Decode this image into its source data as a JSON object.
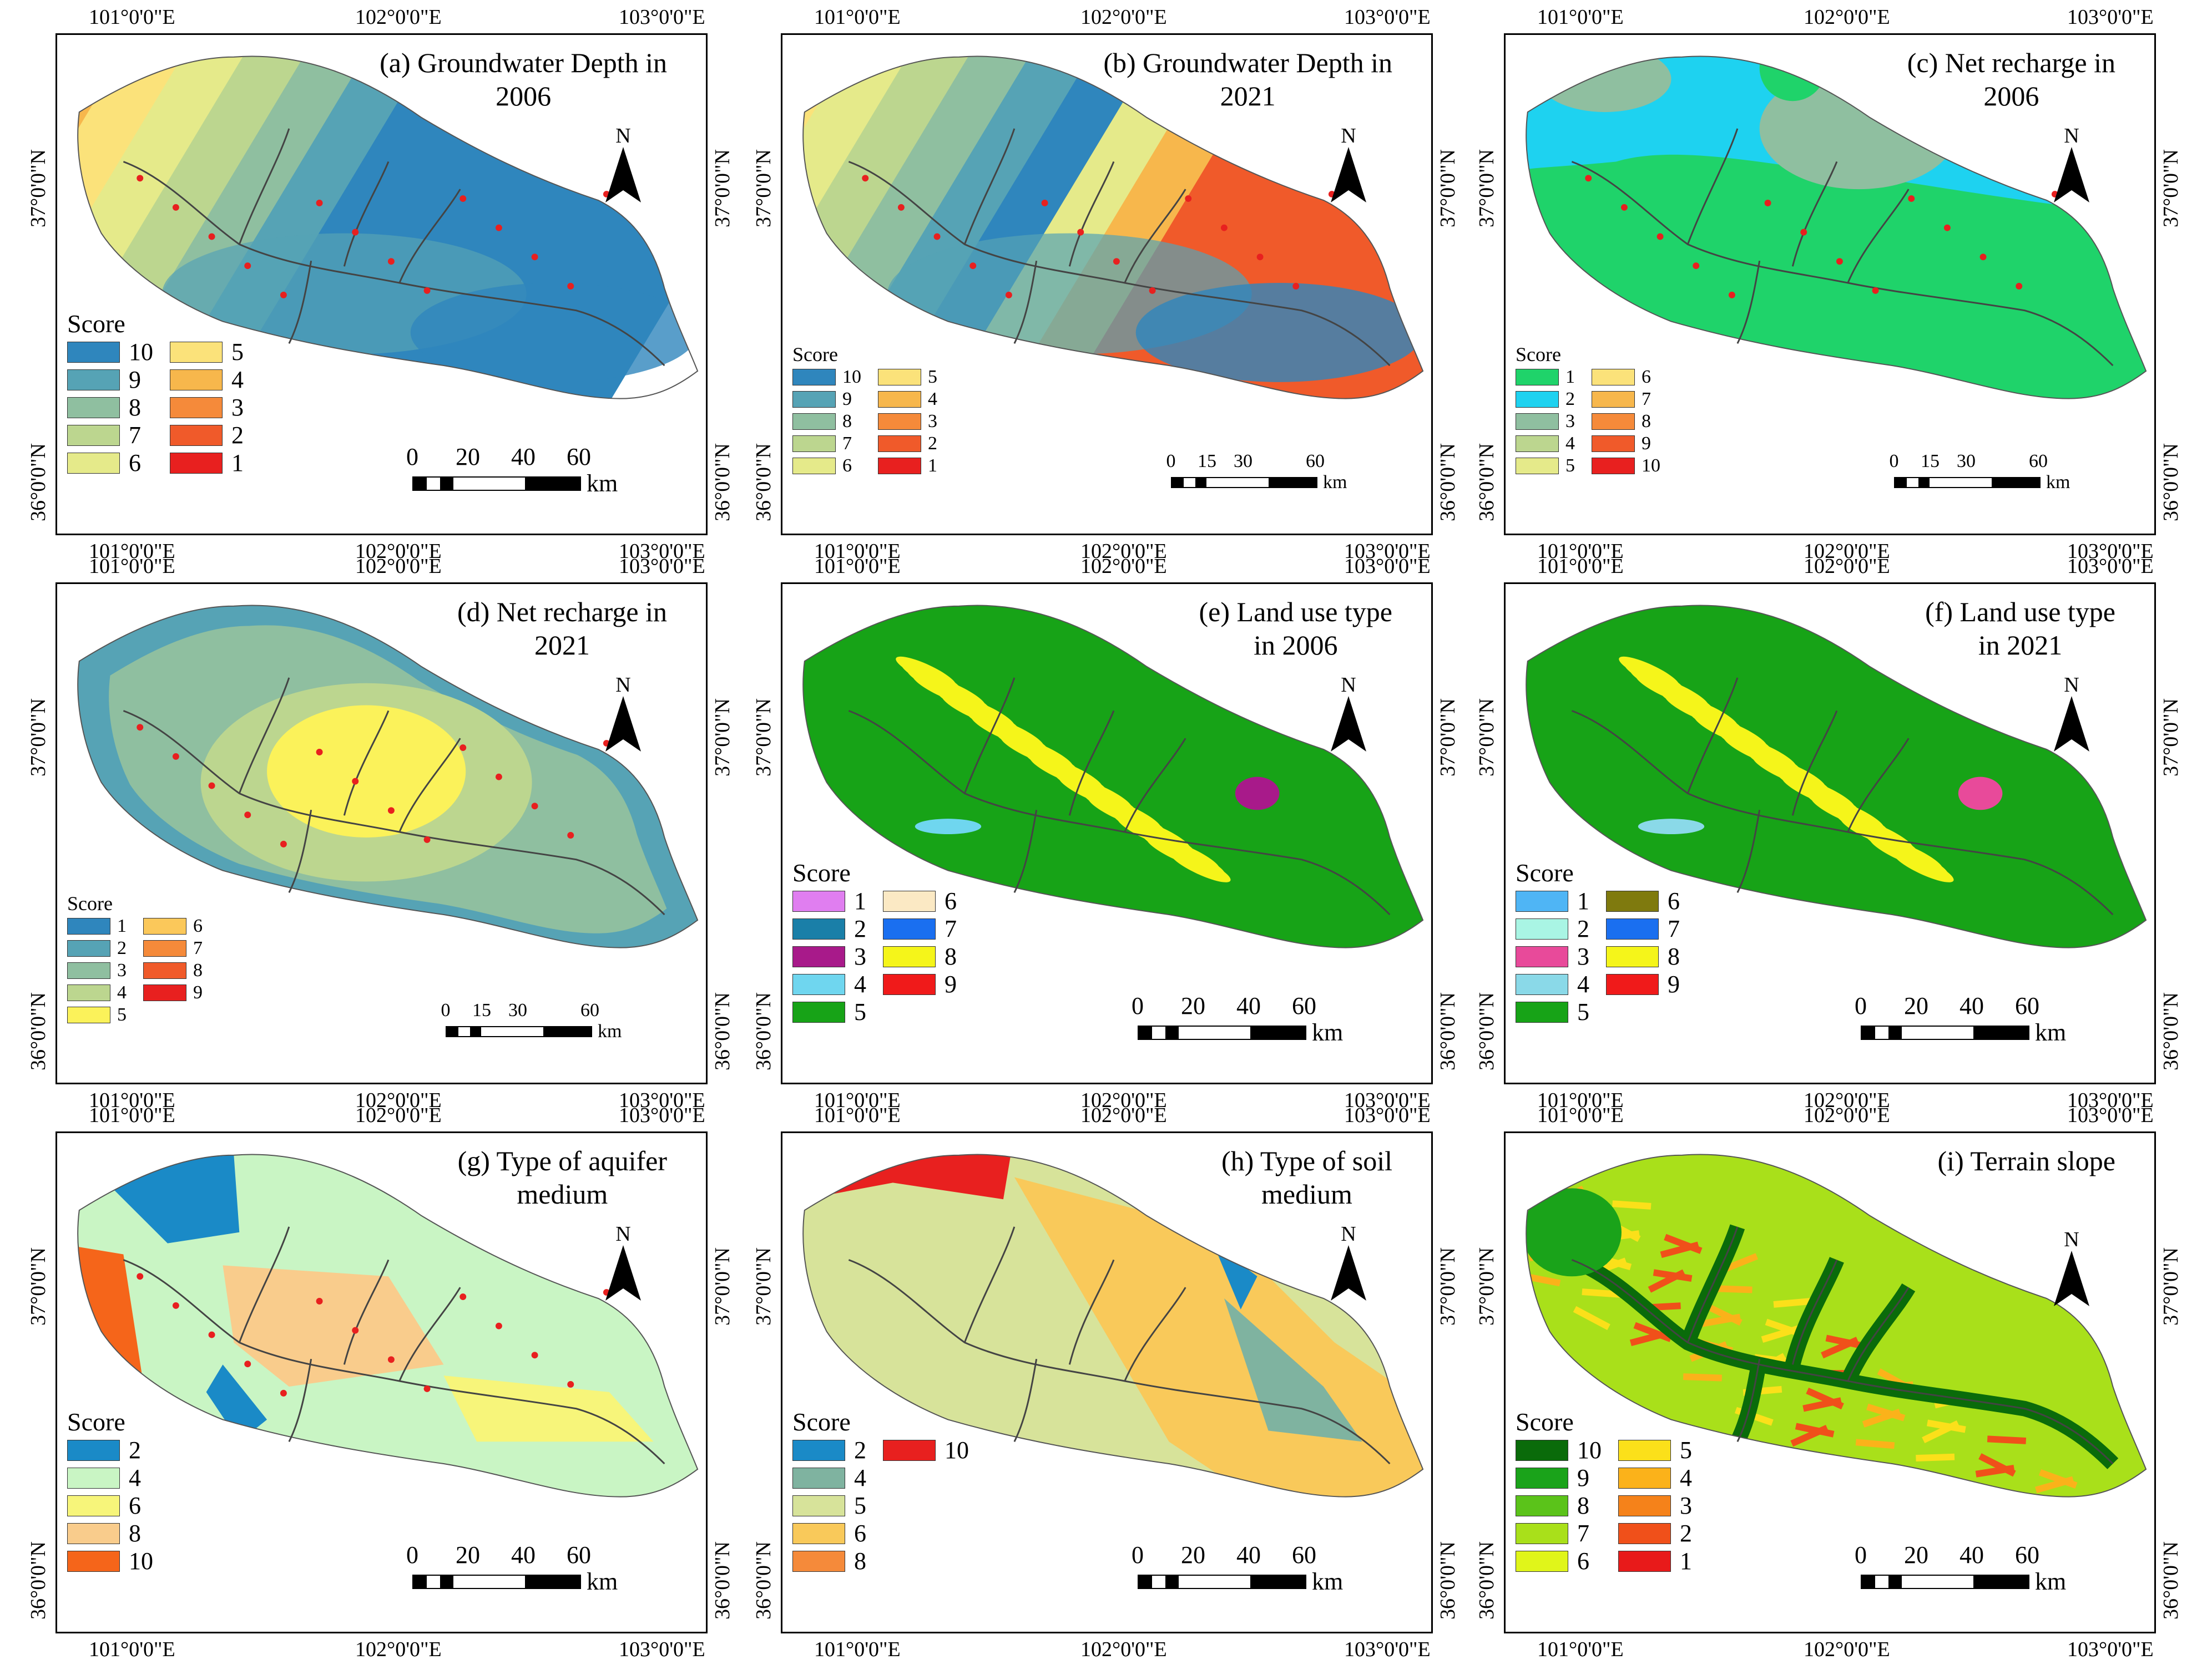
{
  "axis_labels": {
    "lon": [
      "101°0'0\"E",
      "102°0'0\"E",
      "103°0'0\"E"
    ],
    "lat": [
      "37°0'0\"N",
      "36°0'0\"N"
    ]
  },
  "north_label": "N",
  "panels": [
    {
      "title_line1": "(a) Groundwater Depth in",
      "title_line2": "2006",
      "legend_title": "Score",
      "legend_col1": [
        {
          "label": "10",
          "color": "#2f86bd"
        },
        {
          "label": "9",
          "color": "#56a3b5"
        },
        {
          "label": "8",
          "color": "#8fbfa0"
        },
        {
          "label": "7",
          "color": "#bcd68f"
        },
        {
          "label": "6",
          "color": "#e5ea8a"
        }
      ],
      "legend_col2": [
        {
          "label": "5",
          "color": "#fbe27a"
        },
        {
          "label": "4",
          "color": "#f7b74c"
        },
        {
          "label": "3",
          "color": "#f58a3a"
        },
        {
          "label": "2",
          "color": "#f05a2a"
        },
        {
          "label": "1",
          "color": "#e8201f"
        }
      ],
      "scale_ticks": [
        "0",
        "20",
        "40",
        "60"
      ],
      "scale_unit": "km"
    },
    {
      "title_line1": "(b) Groundwater Depth in",
      "title_line2": "2021",
      "legend_title": "Score",
      "legend_col1": [
        {
          "label": "10",
          "color": "#2f86bd"
        },
        {
          "label": "9",
          "color": "#56a3b5"
        },
        {
          "label": "8",
          "color": "#8fbfa0"
        },
        {
          "label": "7",
          "color": "#bcd68f"
        },
        {
          "label": "6",
          "color": "#e5ea8a"
        }
      ],
      "legend_col2": [
        {
          "label": "5",
          "color": "#fbe27a"
        },
        {
          "label": "4",
          "color": "#f7b74c"
        },
        {
          "label": "3",
          "color": "#f58a3a"
        },
        {
          "label": "2",
          "color": "#f05a2a"
        },
        {
          "label": "1",
          "color": "#e8201f"
        }
      ],
      "scale_ticks": [
        "0",
        "15",
        "30",
        "60"
      ],
      "scale_unit": "km"
    },
    {
      "title_line1": "(c) Net recharge in",
      "title_line2": "2006",
      "legend_title": "Score",
      "legend_col1": [
        {
          "label": "1",
          "color": "#1fd36a"
        },
        {
          "label": "2",
          "color": "#1ed2f0"
        },
        {
          "label": "3",
          "color": "#8fbfa0"
        },
        {
          "label": "4",
          "color": "#bcd68f"
        },
        {
          "label": "5",
          "color": "#e5ea8a"
        }
      ],
      "legend_col2": [
        {
          "label": "6",
          "color": "#fbe27a"
        },
        {
          "label": "7",
          "color": "#f7b74c"
        },
        {
          "label": "8",
          "color": "#f58a3a"
        },
        {
          "label": "9",
          "color": "#f05a2a"
        },
        {
          "label": "10",
          "color": "#e8201f"
        }
      ],
      "scale_ticks": [
        "0",
        "15",
        "30",
        "60"
      ],
      "scale_unit": "km"
    },
    {
      "title_line1": "(d) Net recharge in",
      "title_line2": "2021",
      "legend_title": "Score",
      "legend_col1": [
        {
          "label": "1",
          "color": "#2f86bd"
        },
        {
          "label": "2",
          "color": "#56a3b5"
        },
        {
          "label": "3",
          "color": "#8fbfa0"
        },
        {
          "label": "4",
          "color": "#bcd68f"
        },
        {
          "label": "5",
          "color": "#fbf25a"
        }
      ],
      "legend_col2": [
        {
          "label": "6",
          "color": "#fbc85a"
        },
        {
          "label": "7",
          "color": "#f58a3a"
        },
        {
          "label": "8",
          "color": "#f05a2a"
        },
        {
          "label": "9",
          "color": "#e8201f"
        }
      ],
      "scale_ticks": [
        "0",
        "15",
        "30",
        "60"
      ],
      "scale_unit": "km"
    },
    {
      "title_line1": "(e) Land use type",
      "title_line2": "in 2006",
      "legend_title": "Score",
      "legend_col1": [
        {
          "label": "1",
          "color": "#e07ef0"
        },
        {
          "label": "2",
          "color": "#1a7fa8"
        },
        {
          "label": "3",
          "color": "#a81a8a"
        },
        {
          "label": "4",
          "color": "#6fd6ef"
        },
        {
          "label": "5",
          "color": "#17a317"
        }
      ],
      "legend_col2": [
        {
          "label": "6",
          "color": "#fbe9c4"
        },
        {
          "label": "7",
          "color": "#1a6ff0"
        },
        {
          "label": "8",
          "color": "#f5f51a"
        },
        {
          "label": "9",
          "color": "#f01a1a"
        }
      ],
      "scale_ticks": [
        "0",
        "20",
        "40",
        "60"
      ],
      "scale_unit": "km"
    },
    {
      "title_line1": "(f) Land use type",
      "title_line2": "in 2021",
      "legend_title": "Score",
      "legend_col1": [
        {
          "label": "1",
          "color": "#4fb5f5"
        },
        {
          "label": "2",
          "color": "#a9f5e4"
        },
        {
          "label": "3",
          "color": "#e84a9a"
        },
        {
          "label": "4",
          "color": "#8ad9e8"
        },
        {
          "label": "5",
          "color": "#17a317"
        }
      ],
      "legend_col2": [
        {
          "label": "6",
          "color": "#7f7a0e"
        },
        {
          "label": "7",
          "color": "#1a6ff0"
        },
        {
          "label": "8",
          "color": "#f5f51a"
        },
        {
          "label": "9",
          "color": "#f01a1a"
        }
      ],
      "scale_ticks": [
        "0",
        "20",
        "40",
        "60"
      ],
      "scale_unit": "km"
    },
    {
      "title_line1": "(g) Type of aquifer",
      "title_line2": "medium",
      "legend_title": "Score",
      "legend_col1": [
        {
          "label": "2",
          "color": "#1a8ac7"
        },
        {
          "label": "4",
          "color": "#c9f5c4"
        },
        {
          "label": "6",
          "color": "#f7f57a"
        },
        {
          "label": "8",
          "color": "#f9cc8c"
        },
        {
          "label": "10",
          "color": "#f5651a"
        }
      ],
      "legend_col2": [],
      "scale_ticks": [
        "0",
        "20",
        "40",
        "60"
      ],
      "scale_unit": "km"
    },
    {
      "title_line1": "(h) Type of soil",
      "title_line2": "medium",
      "legend_title": "Score",
      "legend_col1": [
        {
          "label": "2",
          "color": "#1a8ac7"
        },
        {
          "label": "4",
          "color": "#7fb3a0"
        },
        {
          "label": "5",
          "color": "#d7e39a"
        },
        {
          "label": "6",
          "color": "#f9c95a"
        },
        {
          "label": "8",
          "color": "#f58a3a"
        }
      ],
      "legend_col2": [
        {
          "label": "10",
          "color": "#e8201f"
        }
      ],
      "scale_ticks": [
        "0",
        "20",
        "40",
        "60"
      ],
      "scale_unit": "km"
    },
    {
      "title_line1": "(i) Terrain slope",
      "title_line2": "",
      "legend_title": "Score",
      "legend_col1": [
        {
          "label": "10",
          "color": "#0a6b0a"
        },
        {
          "label": "9",
          "color": "#1aa31a"
        },
        {
          "label": "8",
          "color": "#5bc31a"
        },
        {
          "label": "7",
          "color": "#a9e01a"
        },
        {
          "label": "6",
          "color": "#e0f51a"
        }
      ],
      "legend_col2": [
        {
          "label": "5",
          "color": "#fbe01a"
        },
        {
          "label": "4",
          "color": "#fbb21a"
        },
        {
          "label": "3",
          "color": "#f5821a"
        },
        {
          "label": "2",
          "color": "#f0501a"
        },
        {
          "label": "1",
          "color": "#e81a1a"
        }
      ],
      "scale_ticks": [
        "0",
        "20",
        "40",
        "60"
      ],
      "scale_unit": "km"
    }
  ]
}
